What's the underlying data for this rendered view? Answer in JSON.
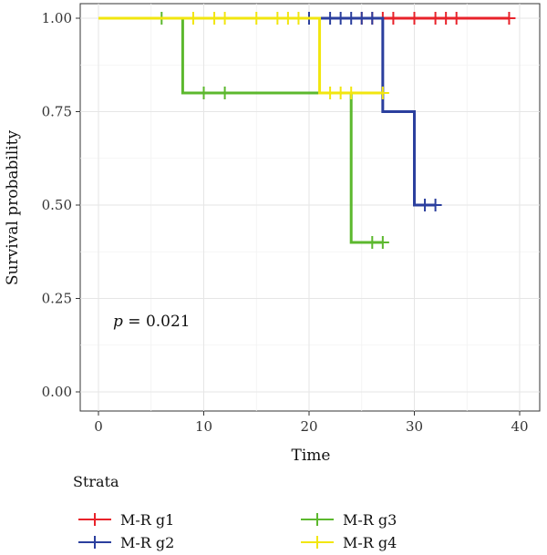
{
  "chart_data": {
    "type": "line",
    "step": true,
    "xlabel": "Time",
    "ylabel": "Survival probability",
    "xlim": [
      0,
      40
    ],
    "ylim": [
      0,
      1
    ],
    "x_ticks": [
      0,
      10,
      20,
      30,
      40
    ],
    "y_ticks": [
      0.0,
      0.25,
      0.5,
      0.75,
      1.0
    ],
    "y_tick_labels": [
      "0.00",
      "0.25",
      "0.50",
      "0.75",
      "1.00"
    ],
    "grid": true,
    "legend_placement": "bottom",
    "legend_title": "Strata",
    "annotation": {
      "p_symbol": "p",
      "p_rest": " = 0.021"
    },
    "series": [
      {
        "name": "M-R g1",
        "color": "#e8222a",
        "steps": [
          [
            0,
            1.0
          ],
          [
            39,
            1.0
          ]
        ],
        "censored": [
          [
            25,
            1.0
          ],
          [
            26,
            1.0
          ],
          [
            27,
            1.0
          ],
          [
            28,
            1.0
          ],
          [
            30,
            1.0
          ],
          [
            32,
            1.0
          ],
          [
            33,
            1.0
          ],
          [
            34,
            1.0
          ],
          [
            39,
            1.0
          ]
        ]
      },
      {
        "name": "M-R g2",
        "color": "#2b3f9e",
        "steps": [
          [
            0,
            1.0
          ],
          [
            27,
            0.75
          ],
          [
            30,
            0.5
          ],
          [
            32,
            0.5
          ]
        ],
        "censored": [
          [
            20,
            1.0
          ],
          [
            22,
            1.0
          ],
          [
            23,
            1.0
          ],
          [
            24,
            1.0
          ],
          [
            25,
            1.0
          ],
          [
            26,
            1.0
          ],
          [
            31,
            0.5
          ],
          [
            32,
            0.5
          ]
        ]
      },
      {
        "name": "M-R g3",
        "color": "#5cb82e",
        "steps": [
          [
            0,
            1.0
          ],
          [
            8,
            0.8
          ],
          [
            24,
            0.4
          ],
          [
            27,
            0.4
          ]
        ],
        "censored": [
          [
            6,
            1.0
          ],
          [
            10,
            0.8
          ],
          [
            12,
            0.8
          ],
          [
            26,
            0.4
          ],
          [
            27,
            0.4
          ]
        ]
      },
      {
        "name": "M-R g4",
        "color": "#f2e60f",
        "steps": [
          [
            0,
            1.0
          ],
          [
            21,
            0.8
          ],
          [
            27,
            0.8
          ]
        ],
        "censored": [
          [
            9,
            1.0
          ],
          [
            11,
            1.0
          ],
          [
            12,
            1.0
          ],
          [
            15,
            1.0
          ],
          [
            17,
            1.0
          ],
          [
            18,
            1.0
          ],
          [
            19,
            1.0
          ],
          [
            22,
            0.8
          ],
          [
            23,
            0.8
          ],
          [
            24,
            0.8
          ],
          [
            27,
            0.8
          ]
        ]
      }
    ]
  }
}
